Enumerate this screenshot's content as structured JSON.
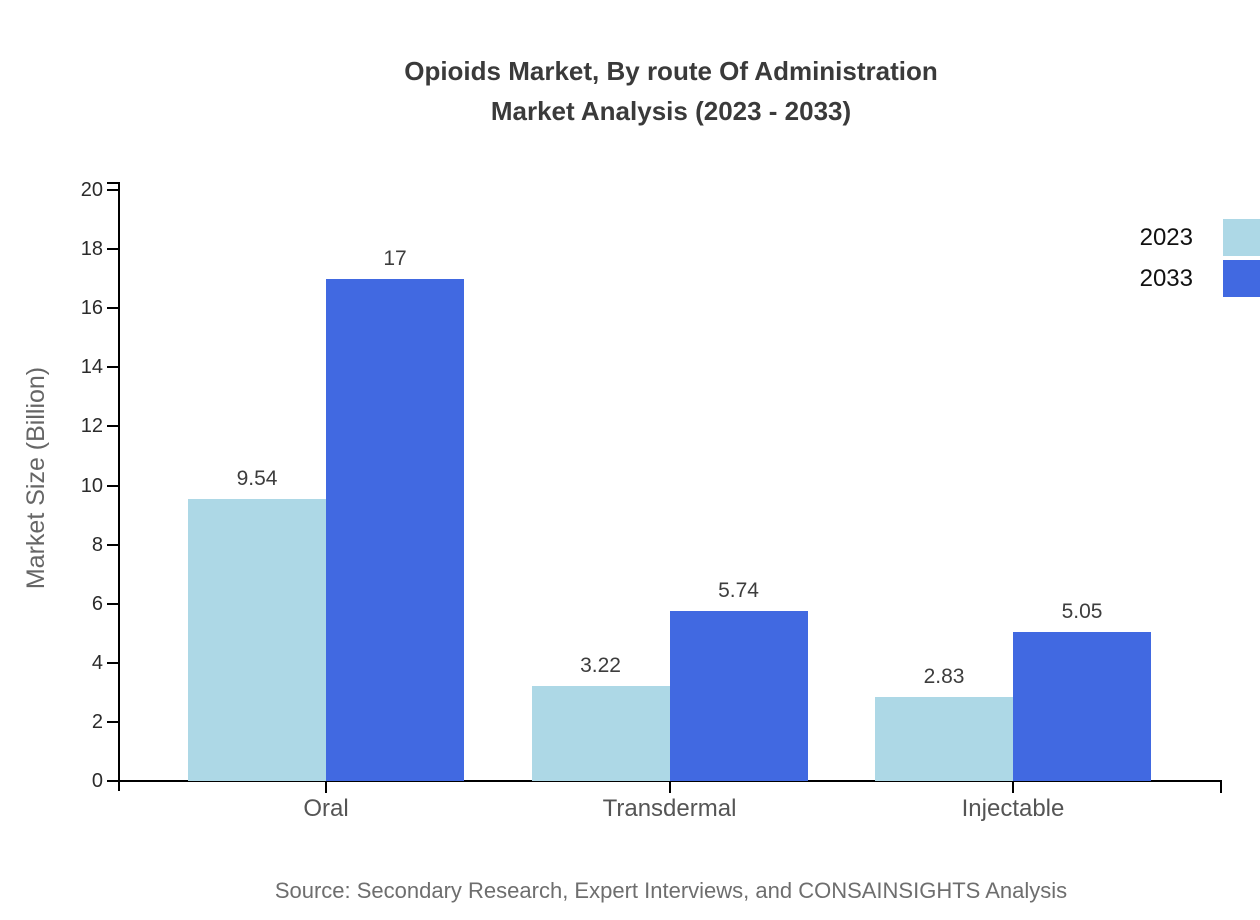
{
  "title": {
    "line1": "Opioids Market, By route Of Administration",
    "line2": "Market Analysis (2023 - 2033)"
  },
  "source_note": "Source: Secondary Research, Expert Interviews, and CONSAINSIGHTS Analysis",
  "colors": {
    "series_2023": "#ADD8E6",
    "series_2033": "#4169E1",
    "axis": "#000000",
    "title_text": "#3a3a3a",
    "category_text": "#555555",
    "source_text": "#6e6e6e"
  },
  "chart_data": {
    "type": "bar",
    "title": "Opioids Market, By route Of Administration Market Analysis (2023 - 2033)",
    "categories": [
      "Oral",
      "Transdermal",
      "Injectable"
    ],
    "series": [
      {
        "name": "2023",
        "color": "#ADD8E6",
        "values": [
          9.54,
          3.22,
          2.83
        ],
        "labels": [
          "9.54",
          "3.22",
          "2.83"
        ]
      },
      {
        "name": "2033",
        "color": "#4169E1",
        "values": [
          17,
          5.74,
          5.05
        ],
        "labels": [
          "17",
          "5.74",
          "5.05"
        ]
      }
    ],
    "xlabel": "",
    "ylabel": "Market Size (Billion)",
    "ylim": [
      0,
      20
    ],
    "yticks": [
      0,
      2,
      4,
      6,
      8,
      10,
      12,
      14,
      16,
      18,
      20
    ],
    "grid": false,
    "legend_position": "top-right"
  }
}
